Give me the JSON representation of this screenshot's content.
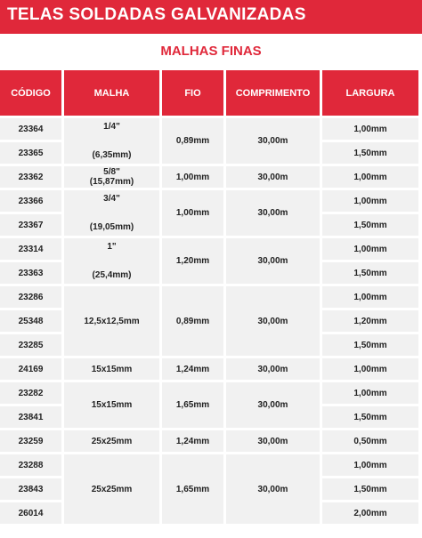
{
  "title": "TELAS SOLDADAS GALVANIZADAS",
  "subtitle": "MALHAS FINAS",
  "headers": [
    "CÓDIGO",
    "MALHA",
    "FIO",
    "COMPRIMENTO",
    "LARGURA"
  ],
  "groups": [
    {
      "codes": [
        "23364",
        "23365"
      ],
      "malha": [
        "1/4\"",
        "(6,35mm)"
      ],
      "fio": "0,89mm",
      "comprimento": "30,00m",
      "larguras": [
        "1,00mm",
        "1,50mm"
      ]
    },
    {
      "codes": [
        "23362"
      ],
      "malha": [
        "5/8\"",
        "(15,87mm)"
      ],
      "fio": "1,00mm",
      "comprimento": "30,00m",
      "larguras": [
        "1,00mm"
      ]
    },
    {
      "codes": [
        "23366",
        "23367"
      ],
      "malha": [
        "3/4\"",
        "(19,05mm)"
      ],
      "fio": "1,00mm",
      "comprimento": "30,00m",
      "larguras": [
        "1,00mm",
        "1,50mm"
      ]
    },
    {
      "codes": [
        "23314",
        "23363"
      ],
      "malha": [
        "1\"",
        "(25,4mm)"
      ],
      "fio": "1,20mm",
      "comprimento": "30,00m",
      "larguras": [
        "1,00mm",
        "1,50mm"
      ]
    },
    {
      "codes": [
        "23286",
        "25348",
        "23285"
      ],
      "malha": [
        "12,5x12,5mm"
      ],
      "fio": "0,89mm",
      "comprimento": "30,00m",
      "larguras": [
        "1,00mm",
        "1,20mm",
        "1,50mm"
      ]
    },
    {
      "codes": [
        "24169"
      ],
      "malha": [
        "15x15mm"
      ],
      "fio": "1,24mm",
      "comprimento": "30,00m",
      "larguras": [
        "1,00mm"
      ]
    },
    {
      "codes": [
        "23282",
        "23841"
      ],
      "malha": [
        "15x15mm"
      ],
      "fio": "1,65mm",
      "comprimento": "30,00m",
      "larguras": [
        "1,00mm",
        "1,50mm"
      ]
    },
    {
      "codes": [
        "23259"
      ],
      "malha": [
        "25x25mm"
      ],
      "fio": "1,24mm",
      "comprimento": "30,00m",
      "larguras": [
        "0,50mm"
      ]
    },
    {
      "codes": [
        "23288",
        "23843",
        "26014"
      ],
      "malha": [
        "25x25mm"
      ],
      "fio": "1,65mm",
      "comprimento": "30,00m",
      "larguras": [
        "1,00mm",
        "1,50mm",
        "2,00mm"
      ]
    }
  ]
}
